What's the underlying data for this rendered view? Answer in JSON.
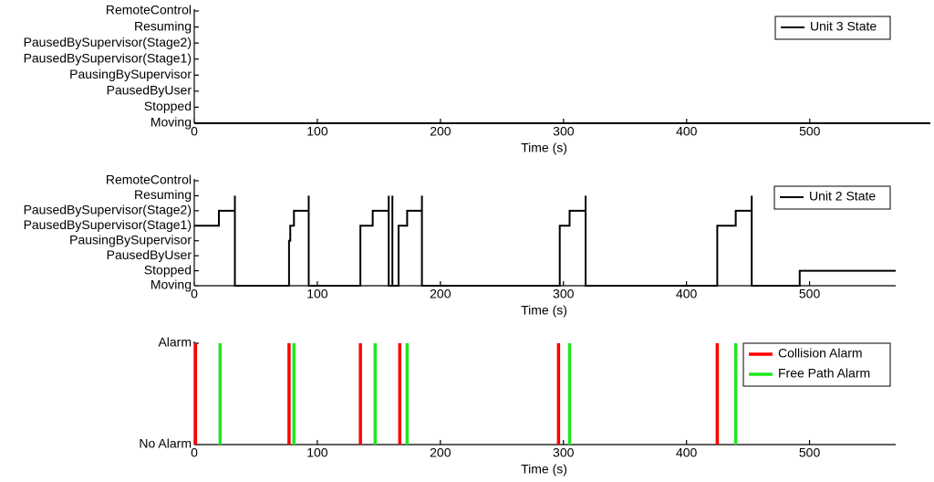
{
  "chart_data": [
    {
      "type": "line",
      "x_label": "Time (s)",
      "xlim": [
        0,
        598
      ],
      "xticks": [
        0,
        100,
        200,
        300,
        400,
        500
      ],
      "ylim": [
        0,
        7
      ],
      "yticks": [
        {
          "value": 0,
          "label": "Moving"
        },
        {
          "value": 1,
          "label": "Stopped"
        },
        {
          "value": 2,
          "label": "PausedByUser"
        },
        {
          "value": 3,
          "label": "PausingBySupervisor"
        },
        {
          "value": 4,
          "label": "PausedBySupervisor(Stage1)"
        },
        {
          "value": 5,
          "label": "PausedBySupervisor(Stage2)"
        },
        {
          "value": 6,
          "label": "Resuming"
        },
        {
          "value": 7,
          "label": "RemoteControl"
        }
      ],
      "legend": "upper right",
      "grid": false,
      "series": [
        {
          "name": "Unit 3 State",
          "color": "#000000",
          "x": [
            0,
            598
          ],
          "values": [
            0,
            0
          ]
        }
      ]
    },
    {
      "type": "line",
      "x_label": "Time (s)",
      "xlim": [
        0,
        570
      ],
      "xticks": [
        0,
        100,
        200,
        300,
        400,
        500
      ],
      "ylim": [
        0,
        7
      ],
      "yticks": [
        {
          "value": 0,
          "label": "Moving"
        },
        {
          "value": 1,
          "label": "Stopped"
        },
        {
          "value": 2,
          "label": "PausedByUser"
        },
        {
          "value": 3,
          "label": "PausingBySupervisor"
        },
        {
          "value": 4,
          "label": "PausedBySupervisor(Stage1)"
        },
        {
          "value": 5,
          "label": "PausedBySupervisor(Stage2)"
        },
        {
          "value": 6,
          "label": "Resuming"
        },
        {
          "value": 7,
          "label": "RemoteControl"
        }
      ],
      "legend": "upper right",
      "grid": false,
      "series": [
        {
          "name": "Unit 2 State",
          "color": "#000000",
          "x": [
            0,
            20,
            20,
            33,
            33,
            33,
            77,
            77,
            78,
            78,
            81,
            81,
            93,
            93,
            93,
            135,
            135,
            145,
            145,
            158,
            158,
            158,
            161,
            161,
            161,
            166,
            166,
            173,
            173,
            185,
            185,
            185,
            297,
            297,
            305,
            305,
            318,
            318,
            318,
            425,
            425,
            440,
            440,
            453,
            453,
            453,
            492,
            492,
            570
          ],
          "values": [
            4,
            4,
            5,
            5,
            6,
            0,
            0,
            3,
            3,
            4,
            4,
            5,
            5,
            6,
            0,
            0,
            4,
            4,
            5,
            5,
            6,
            0,
            0,
            6,
            0,
            0,
            4,
            4,
            5,
            5,
            6,
            0,
            0,
            4,
            4,
            5,
            5,
            6,
            0,
            0,
            4,
            4,
            5,
            5,
            6,
            0,
            0,
            1,
            1
          ]
        }
      ]
    },
    {
      "type": "vlines",
      "x_label": "Time (s)",
      "xlim": [
        0,
        570
      ],
      "xticks": [
        0,
        100,
        200,
        300,
        400,
        500
      ],
      "ylim": [
        0,
        1
      ],
      "yticks": [
        {
          "value": 0,
          "label": "No Alarm"
        },
        {
          "value": 1,
          "label": "Alarm"
        }
      ],
      "legend": "upper right",
      "grid": false,
      "series": [
        {
          "name": "Collision Alarm",
          "color": "#ff0000",
          "x": [
            1,
            77,
            135,
            167,
            296,
            425
          ],
          "values": [
            1,
            1,
            1,
            1,
            1,
            1
          ]
        },
        {
          "name": "Free Path Alarm",
          "color": "#1ee81e",
          "x": [
            21,
            81,
            147,
            173,
            305,
            440
          ],
          "values": [
            1,
            1,
            1,
            1,
            1,
            1
          ]
        }
      ]
    }
  ]
}
